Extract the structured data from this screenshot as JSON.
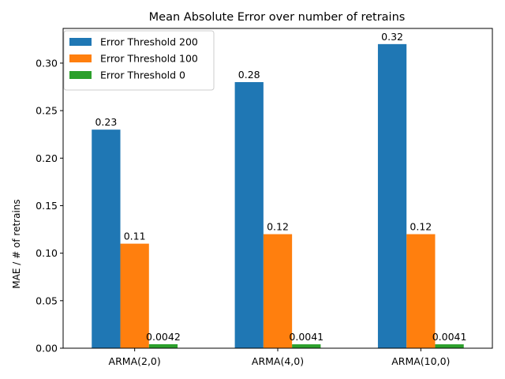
{
  "chart_data": {
    "type": "bar",
    "title": "Mean Absolute Error over number of retrains",
    "xlabel": "",
    "ylabel": "MAE / # of retrains",
    "ylim": [
      0,
      0.3365
    ],
    "yticks": [
      0.0,
      0.05,
      0.1,
      0.15,
      0.2,
      0.25,
      0.3
    ],
    "ytick_labels": [
      "0.00",
      "0.05",
      "0.10",
      "0.15",
      "0.20",
      "0.25",
      "0.30"
    ],
    "grid": false,
    "legend_position": "top-left",
    "categories": [
      "ARMA(2,0)",
      "ARMA(4,0)",
      "ARMA(10,0)"
    ],
    "series": [
      {
        "name": "Error Threshold 200",
        "color": "#1f77b4",
        "values": [
          0.23,
          0.28,
          0.32
        ],
        "labels": [
          "0.23",
          "0.28",
          "0.32"
        ]
      },
      {
        "name": "Error Threshold 100",
        "color": "#ff7f0e",
        "values": [
          0.11,
          0.12,
          0.12
        ],
        "labels": [
          "0.11",
          "0.12",
          "0.12"
        ]
      },
      {
        "name": "Error Threshold 0",
        "color": "#2ca02c",
        "values": [
          0.0042,
          0.0041,
          0.0041
        ],
        "labels": [
          "0.0042",
          "0.0041",
          "0.0041"
        ]
      }
    ]
  }
}
